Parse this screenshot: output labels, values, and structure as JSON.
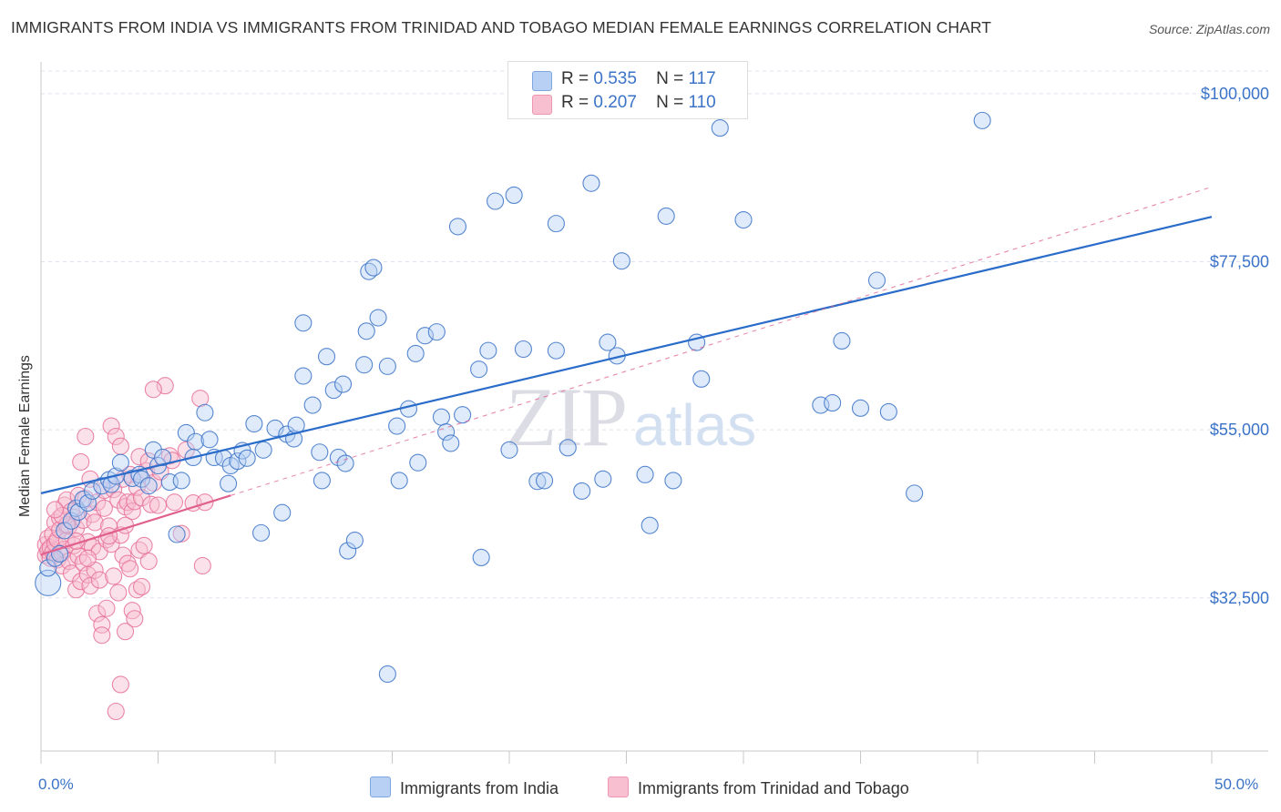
{
  "title": "IMMIGRANTS FROM INDIA VS IMMIGRANTS FROM TRINIDAD AND TOBAGO MEDIAN FEMALE EARNINGS CORRELATION CHART",
  "source": "Source: ZipAtlas.com",
  "watermark": {
    "bold": "ZIP",
    "light": "atlas"
  },
  "legend_top": [
    {
      "r_label": "R =",
      "r_value": "0.535",
      "n_label": "N =",
      "n_value": "117"
    },
    {
      "r_label": "R =",
      "r_value": "0.207",
      "n_label": "N =",
      "n_value": "110"
    }
  ],
  "legend_bottom": [
    "Immigrants from India",
    "Immigrants from Trinidad and Tobago"
  ],
  "x_tick_labels": {
    "left": "0.0%",
    "right": "50.0%"
  },
  "colors": {
    "blue": "#3b73c8",
    "blue_fill": "#b8d0f3",
    "blue_line": "#2a6cc9",
    "pink": "#e8719a",
    "pink_fill": "#f7bfd0",
    "pink_line": "#e0608e",
    "grid": "#dde3ee",
    "axis_label": "#3b73c8"
  },
  "chart_data": {
    "type": "scatter",
    "title": "IMMIGRANTS FROM INDIA VS IMMIGRANTS FROM TRINIDAD AND TOBAGO MEDIAN FEMALE EARNINGS CORRELATION CHART",
    "xlabel": "",
    "ylabel": "Median Female Earnings",
    "xlim": [
      0,
      50
    ],
    "ylim": [
      12000,
      104000
    ],
    "y_ticks": [
      {
        "value": 32500,
        "label": "$32,500"
      },
      {
        "value": 55000,
        "label": "$55,000"
      },
      {
        "value": 77500,
        "label": "$77,500"
      },
      {
        "value": 100000,
        "label": "$100,000"
      }
    ],
    "x_ticks": [
      0,
      5,
      10,
      15,
      20,
      25,
      30,
      35,
      40,
      45,
      50
    ],
    "series": [
      {
        "name": "Immigrants from India",
        "color": "blue",
        "R": 0.535,
        "N": 117,
        "trend": {
          "x0": 0,
          "y0": 46500,
          "x1": 50,
          "y1": 83500,
          "style": "solid"
        },
        "points": [
          [
            0.3,
            34500
          ],
          [
            0.3,
            36500
          ],
          [
            0.6,
            37800
          ],
          [
            0.8,
            38400
          ],
          [
            1.0,
            41500
          ],
          [
            1.3,
            42800
          ],
          [
            1.5,
            44500
          ],
          [
            1.6,
            44000
          ],
          [
            1.8,
            45700
          ],
          [
            2.0,
            45200
          ],
          [
            2.2,
            46800
          ],
          [
            2.6,
            47500
          ],
          [
            2.9,
            48300
          ],
          [
            3.0,
            47700
          ],
          [
            3.2,
            48800
          ],
          [
            3.4,
            50600
          ],
          [
            3.9,
            48500
          ],
          [
            4.2,
            49000
          ],
          [
            4.3,
            48400
          ],
          [
            4.6,
            47500
          ],
          [
            4.8,
            52300
          ],
          [
            5.0,
            50200
          ],
          [
            5.2,
            51300
          ],
          [
            5.5,
            48000
          ],
          [
            6.0,
            48200
          ],
          [
            5.8,
            41000
          ],
          [
            6.2,
            54600
          ],
          [
            6.6,
            53400
          ],
          [
            6.5,
            51300
          ],
          [
            7.0,
            57300
          ],
          [
            7.2,
            53700
          ],
          [
            7.4,
            51300
          ],
          [
            7.8,
            51200
          ],
          [
            8.0,
            47800
          ],
          [
            8.1,
            50200
          ],
          [
            8.4,
            50800
          ],
          [
            8.6,
            52200
          ],
          [
            8.8,
            51200
          ],
          [
            9.1,
            55800
          ],
          [
            9.5,
            52300
          ],
          [
            9.4,
            41200
          ],
          [
            10.0,
            55200
          ],
          [
            10.5,
            54400
          ],
          [
            10.3,
            43900
          ],
          [
            10.8,
            53800
          ],
          [
            10.9,
            55600
          ],
          [
            11.2,
            62200
          ],
          [
            11.6,
            58300
          ],
          [
            11.2,
            69300
          ],
          [
            11.9,
            52000
          ],
          [
            12.0,
            48200
          ],
          [
            12.2,
            64800
          ],
          [
            12.5,
            60300
          ],
          [
            12.7,
            51300
          ],
          [
            12.9,
            61100
          ],
          [
            13.0,
            50500
          ],
          [
            13.1,
            38800
          ],
          [
            13.4,
            40200
          ],
          [
            13.8,
            63700
          ],
          [
            13.9,
            68200
          ],
          [
            14.0,
            76200
          ],
          [
            14.2,
            76700
          ],
          [
            14.4,
            70000
          ],
          [
            14.8,
            63500
          ],
          [
            15.2,
            55500
          ],
          [
            15.3,
            48200
          ],
          [
            15.7,
            57800
          ],
          [
            16.0,
            65200
          ],
          [
            16.1,
            50600
          ],
          [
            16.4,
            67600
          ],
          [
            16.9,
            68100
          ],
          [
            17.1,
            56700
          ],
          [
            17.3,
            54700
          ],
          [
            17.5,
            53200
          ],
          [
            18.0,
            57000
          ],
          [
            17.8,
            82200
          ],
          [
            18.7,
            63100
          ],
          [
            18.8,
            37900
          ],
          [
            19.1,
            65600
          ],
          [
            19.4,
            85600
          ],
          [
            20.2,
            86400
          ],
          [
            20.0,
            52300
          ],
          [
            20.6,
            65800
          ],
          [
            21.2,
            48100
          ],
          [
            21.5,
            48200
          ],
          [
            22.0,
            65600
          ],
          [
            22.0,
            82600
          ],
          [
            22.5,
            52600
          ],
          [
            23.1,
            46800
          ],
          [
            23.5,
            88000
          ],
          [
            24.0,
            48400
          ],
          [
            24.2,
            66700
          ],
          [
            24.8,
            77600
          ],
          [
            24.6,
            64900
          ],
          [
            25.8,
            49000
          ],
          [
            26.0,
            42200
          ],
          [
            26.7,
            83600
          ],
          [
            27.0,
            48200
          ],
          [
            28.0,
            66700
          ],
          [
            28.2,
            61800
          ],
          [
            29.0,
            95400
          ],
          [
            30.0,
            83100
          ],
          [
            33.3,
            58300
          ],
          [
            33.8,
            58600
          ],
          [
            34.2,
            66900
          ],
          [
            35.0,
            57900
          ],
          [
            35.7,
            75000
          ],
          [
            36.2,
            57400
          ],
          [
            37.3,
            46500
          ],
          [
            40.2,
            96400
          ],
          [
            14.8,
            22300
          ]
        ]
      },
      {
        "name": "Immigrants from Trinidad and Tobago",
        "color": "pink",
        "R": 0.207,
        "N": 110,
        "trend": {
          "x0": 0,
          "y0": 38300,
          "x1": 8.1,
          "y1": 46200,
          "style": "solid"
        },
        "trend_extended": {
          "x0": 8.1,
          "y0": 46200,
          "x1": 50,
          "y1": 87500,
          "style": "dashed"
        },
        "points": [
          [
            0.2,
            38200
          ],
          [
            0.2,
            39600
          ],
          [
            0.3,
            40500
          ],
          [
            0.3,
            38800
          ],
          [
            0.4,
            37800
          ],
          [
            0.4,
            39200
          ],
          [
            0.5,
            41000
          ],
          [
            0.5,
            38600
          ],
          [
            0.6,
            42600
          ],
          [
            0.6,
            39800
          ],
          [
            0.7,
            40300
          ],
          [
            0.7,
            37600
          ],
          [
            0.8,
            43200
          ],
          [
            0.8,
            41600
          ],
          [
            0.9,
            38500
          ],
          [
            0.9,
            36800
          ],
          [
            1.0,
            44900
          ],
          [
            1.0,
            39000
          ],
          [
            1.1,
            45600
          ],
          [
            1.1,
            40200
          ],
          [
            1.2,
            42100
          ],
          [
            1.2,
            37400
          ],
          [
            1.3,
            44100
          ],
          [
            1.3,
            35800
          ],
          [
            1.4,
            43300
          ],
          [
            1.4,
            39500
          ],
          [
            1.5,
            41800
          ],
          [
            1.5,
            33600
          ],
          [
            1.6,
            46200
          ],
          [
            1.6,
            38100
          ],
          [
            1.7,
            34700
          ],
          [
            1.7,
            50700
          ],
          [
            1.8,
            42900
          ],
          [
            1.8,
            37200
          ],
          [
            1.9,
            45800
          ],
          [
            1.9,
            54100
          ],
          [
            2.0,
            40000
          ],
          [
            2.0,
            35600
          ],
          [
            2.1,
            48400
          ],
          [
            2.1,
            34100
          ],
          [
            2.2,
            43700
          ],
          [
            2.2,
            39300
          ],
          [
            2.3,
            36200
          ],
          [
            2.3,
            42600
          ],
          [
            2.4,
            30400
          ],
          [
            2.4,
            45300
          ],
          [
            2.5,
            38700
          ],
          [
            2.5,
            34900
          ],
          [
            2.6,
            28900
          ],
          [
            2.6,
            27500
          ],
          [
            2.7,
            44500
          ],
          [
            2.7,
            46900
          ],
          [
            2.8,
            40300
          ],
          [
            2.8,
            31100
          ],
          [
            2.9,
            42100
          ],
          [
            3.0,
            55500
          ],
          [
            3.0,
            39700
          ],
          [
            3.1,
            47000
          ],
          [
            3.1,
            35400
          ],
          [
            3.2,
            54100
          ],
          [
            3.3,
            45600
          ],
          [
            3.3,
            33200
          ],
          [
            3.4,
            40900
          ],
          [
            3.4,
            52800
          ],
          [
            3.5,
            38200
          ],
          [
            3.5,
            48400
          ],
          [
            3.6,
            44700
          ],
          [
            3.6,
            28000
          ],
          [
            3.7,
            37100
          ],
          [
            3.7,
            45300
          ],
          [
            3.8,
            36400
          ],
          [
            3.8,
            49000
          ],
          [
            3.9,
            30800
          ],
          [
            3.9,
            44100
          ],
          [
            4.0,
            45400
          ],
          [
            4.0,
            29700
          ],
          [
            4.1,
            33600
          ],
          [
            4.1,
            47300
          ],
          [
            4.2,
            51400
          ],
          [
            4.2,
            38900
          ],
          [
            4.3,
            34000
          ],
          [
            4.3,
            45900
          ],
          [
            4.4,
            39500
          ],
          [
            4.5,
            49500
          ],
          [
            4.6,
            37400
          ],
          [
            4.6,
            50800
          ],
          [
            4.7,
            45000
          ],
          [
            4.8,
            47900
          ],
          [
            5.0,
            44900
          ],
          [
            5.1,
            49400
          ],
          [
            5.3,
            60900
          ],
          [
            5.5,
            51500
          ],
          [
            5.6,
            50900
          ],
          [
            5.7,
            45300
          ],
          [
            6.0,
            41100
          ],
          [
            6.2,
            52300
          ],
          [
            6.5,
            45200
          ],
          [
            6.8,
            59200
          ],
          [
            6.9,
            36800
          ],
          [
            7.0,
            45300
          ],
          [
            3.4,
            20900
          ],
          [
            3.2,
            17300
          ],
          [
            4.8,
            60400
          ],
          [
            2.9,
            40800
          ],
          [
            1.1,
            42300
          ],
          [
            0.9,
            43500
          ],
          [
            3.6,
            42200
          ],
          [
            2.0,
            37800
          ],
          [
            1.5,
            40100
          ],
          [
            0.6,
            44300
          ]
        ]
      }
    ]
  }
}
